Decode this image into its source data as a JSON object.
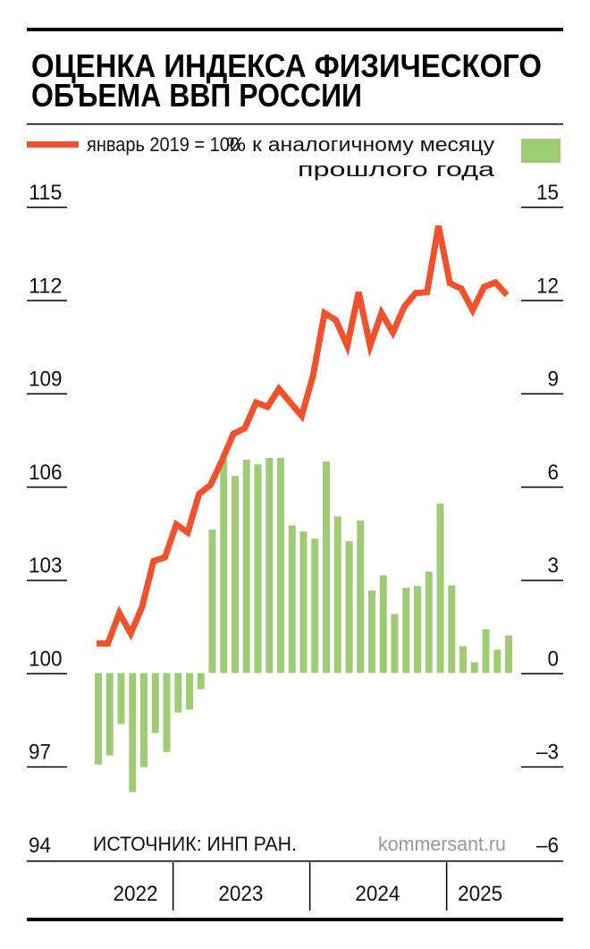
{
  "header": {
    "title_line1": "ОЦЕНКА ИНДЕКСА ФИЗИЧЕСКОГО",
    "title_line2": "ОБЪЕМА ВВП РОССИИ"
  },
  "legend": {
    "line_label": "январь 2019 = 100",
    "bar_label_line1": "% к аналогичному месяцу",
    "bar_label_line2": "прошлого года"
  },
  "footer": {
    "source": "ИСТОЧНИК: ИНП РАН.",
    "brand": "kommersant.ru"
  },
  "colors": {
    "line": "#f2512d",
    "bars": "#9ecb74",
    "rule": "#000000",
    "brand": "#999999"
  },
  "chart_data": {
    "type": "bar+line",
    "title": "ОЦЕНКА ИНДЕКСА ФИЗИЧЕСКОГО ОБЪЕМА ВВП РОССИИ",
    "x_range": "June 2022 – June 2025 (monthly)",
    "year_labels": [
      "2022",
      "2023",
      "2024",
      "2025"
    ],
    "months_per_year": [
      7,
      12,
      12,
      6
    ],
    "left_axis": {
      "label": "январь 2019 = 100",
      "ticks": [
        "115",
        "112",
        "109",
        "106",
        "103",
        "100",
        "97",
        "94"
      ],
      "ylim": [
        94,
        115
      ]
    },
    "right_axis": {
      "label": "% к аналогичному месяцу прошлого года",
      "ticks": [
        "15",
        "12",
        "9",
        "6",
        "3",
        "0",
        "–3",
        "–6"
      ],
      "ylim": [
        -6,
        15
      ]
    },
    "series": [
      {
        "name": "январь 2019 = 100",
        "type": "line",
        "axis": "left",
        "values": [
          100.95,
          100.95,
          101.93,
          101.27,
          102.13,
          103.6,
          103.72,
          104.78,
          104.52,
          105.76,
          106.05,
          106.83,
          107.69,
          107.87,
          108.7,
          108.56,
          109.14,
          108.7,
          108.27,
          109.57,
          111.58,
          111.35,
          110.52,
          112.25,
          110.52,
          111.58,
          110.95,
          111.78,
          112.22,
          112.25,
          114.38,
          112.54,
          112.36,
          111.67,
          112.42,
          112.56,
          112.16
        ]
      },
      {
        "name": "% к аналогичному месяцу прошлого года",
        "type": "bar",
        "axis": "right",
        "values": [
          -2.94,
          -2.65,
          -1.64,
          -3.83,
          -3.03,
          -1.93,
          -2.54,
          -1.27,
          -1.18,
          -0.52,
          4.61,
          6.89,
          6.34,
          6.86,
          6.71,
          6.92,
          6.92,
          4.75,
          4.55,
          4.32,
          6.8,
          5.04,
          4.24,
          4.9,
          2.65,
          3.14,
          1.9,
          2.74,
          2.8,
          3.26,
          5.45,
          2.82,
          0.86,
          0.35,
          1.41,
          0.75,
          1.21
        ]
      }
    ]
  }
}
